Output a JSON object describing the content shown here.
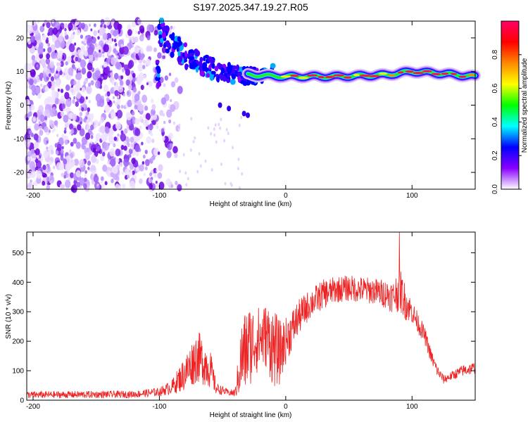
{
  "title": "S197.2025.347.19.27.R05",
  "chart_data": [
    {
      "type": "heatmap",
      "xlabel": "Height of straight line (km)",
      "ylabel": "Frequency (Hz)",
      "xlim": [
        -205,
        150
      ],
      "ylim": [
        -25,
        25
      ],
      "xticks": [
        -200,
        -100,
        0,
        100
      ],
      "yticks": [
        -20,
        -10,
        0,
        10,
        20
      ],
      "colorbar": {
        "label": "Normalized spectral amplitude",
        "range": [
          0,
          1
        ],
        "ticks": [
          "0.0",
          "0.2",
          "0.4",
          "0.6",
          "0.8"
        ],
        "colors": [
          "#ffffff",
          "#8800ff",
          "#0000ff",
          "#00ffff",
          "#00ff00",
          "#ffff00",
          "#ff8800",
          "#ff0000",
          "#ff0066"
        ]
      },
      "features": {
        "noise_region_x": [
          -205,
          -95
        ],
        "descending_ridge": [
          [
            -100,
            22
          ],
          [
            -80,
            15
          ],
          [
            -60,
            11
          ],
          [
            -40,
            9
          ],
          [
            -20,
            8.5
          ],
          [
            -10,
            10
          ]
        ],
        "steady_ridge": [
          [
            0,
            8.5
          ],
          [
            40,
            8.5
          ],
          [
            80,
            9
          ],
          [
            100,
            10
          ],
          [
            120,
            9.5
          ],
          [
            150,
            8.5
          ]
        ]
      }
    },
    {
      "type": "line",
      "xlabel": "Height of straight line (km)",
      "ylabel": "SNR (10 * v/v)",
      "xlim": [
        -205,
        150
      ],
      "ylim": [
        0,
        570
      ],
      "xticks": [
        -200,
        -100,
        0,
        100
      ],
      "yticks": [
        0,
        100,
        200,
        300,
        400,
        500
      ],
      "series": [
        {
          "name": "SNR",
          "color": "#ee2222",
          "envelope_x": [
            -205,
            -120,
            -100,
            -90,
            -80,
            -70,
            -60,
            -55,
            -45,
            -40,
            -35,
            -30,
            -25,
            -20,
            -15,
            -10,
            -5,
            0,
            10,
            20,
            30,
            40,
            50,
            60,
            70,
            80,
            85,
            90,
            95,
            100,
            110,
            115,
            120,
            125,
            130,
            140,
            150
          ],
          "envelope_mean": [
            18,
            20,
            28,
            45,
            90,
            150,
            110,
            40,
            25,
            25,
            140,
            180,
            200,
            210,
            220,
            180,
            160,
            200,
            280,
            330,
            360,
            375,
            380,
            375,
            370,
            360,
            350,
            380,
            330,
            300,
            220,
            150,
            100,
            70,
            80,
            100,
            110
          ],
          "envelope_amp": [
            12,
            12,
            15,
            25,
            60,
            90,
            70,
            20,
            10,
            15,
            130,
            150,
            120,
            110,
            110,
            140,
            110,
            80,
            60,
            50,
            50,
            45,
            45,
            45,
            45,
            50,
            55,
            80,
            60,
            40,
            30,
            25,
            20,
            15,
            15,
            20,
            20
          ],
          "peak": {
            "x": 90,
            "y": 570
          }
        }
      ]
    }
  ]
}
